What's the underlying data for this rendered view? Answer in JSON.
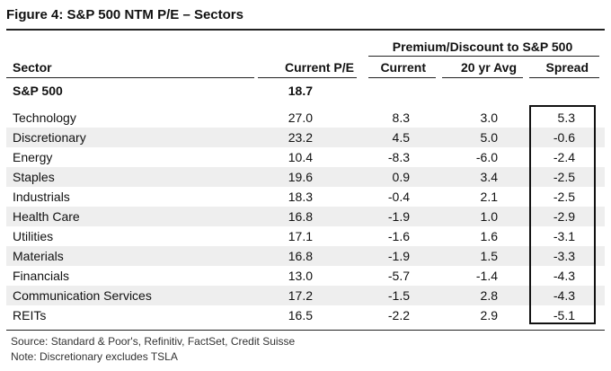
{
  "title": "Figure 4: S&P 500 NTM P/E – Sectors",
  "group_header": "Premium/Discount to S&P 500",
  "columns": {
    "sector": "Sector",
    "current_pe": "Current P/E",
    "current": "Current",
    "avg": "20 yr Avg",
    "spread": "Spread"
  },
  "benchmark": {
    "sector": "S&P 500",
    "pe": "18.7"
  },
  "rows": [
    {
      "sector": "Technology",
      "pe": "27.0",
      "current": "8.3",
      "avg": "3.0",
      "spread": "5.3"
    },
    {
      "sector": "Discretionary",
      "pe": "23.2",
      "current": "4.5",
      "avg": "5.0",
      "spread": "-0.6"
    },
    {
      "sector": "Energy",
      "pe": "10.4",
      "current": "-8.3",
      "avg": "-6.0",
      "spread": "-2.4"
    },
    {
      "sector": "Staples",
      "pe": "19.6",
      "current": "0.9",
      "avg": "3.4",
      "spread": "-2.5"
    },
    {
      "sector": "Industrials",
      "pe": "18.3",
      "current": "-0.4",
      "avg": "2.1",
      "spread": "-2.5"
    },
    {
      "sector": "Health Care",
      "pe": "16.8",
      "current": "-1.9",
      "avg": "1.0",
      "spread": "-2.9"
    },
    {
      "sector": "Utilities",
      "pe": "17.1",
      "current": "-1.6",
      "avg": "1.6",
      "spread": "-3.1"
    },
    {
      "sector": "Materials",
      "pe": "16.8",
      "current": "-1.9",
      "avg": "1.5",
      "spread": "-3.3"
    },
    {
      "sector": "Financials",
      "pe": "13.0",
      "current": "-5.7",
      "avg": "-1.4",
      "spread": "-4.3"
    },
    {
      "sector": "Communication Services",
      "pe": "17.2",
      "current": "-1.5",
      "avg": "2.8",
      "spread": "-4.3"
    },
    {
      "sector": "REITs",
      "pe": "16.5",
      "current": "-2.2",
      "avg": "2.9",
      "spread": "-5.1"
    }
  ],
  "source": "Source: Standard & Poor's, Refinitiv, FactSet, Credit Suisse",
  "note": "Note: Discretionary excludes TSLA"
}
